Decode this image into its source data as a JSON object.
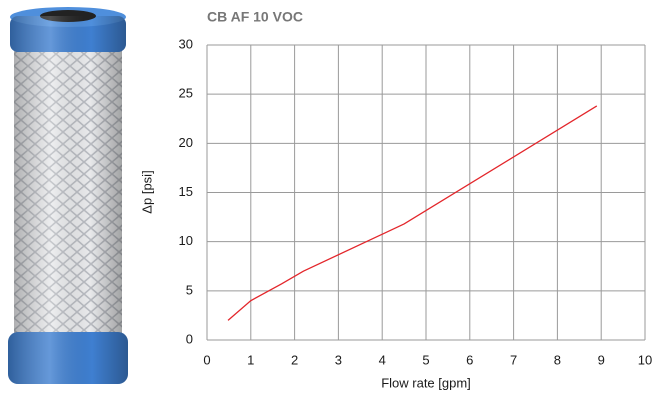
{
  "chart_data": {
    "type": "line",
    "title": "CB AF 10 VOC",
    "x_label": "Flow rate [gpm]",
    "y_label": "Δp [psi]",
    "x": [
      0.48,
      1.0,
      1.7,
      2.2,
      4.5,
      8.9
    ],
    "values": [
      2.0,
      4.0,
      5.7,
      7.0,
      11.8,
      23.8
    ],
    "color": "#e3262b",
    "xlim": [
      0,
      10
    ],
    "xticks": [
      0,
      1,
      2,
      3,
      4,
      5,
      6,
      7,
      8,
      9,
      10
    ],
    "ylim": [
      0,
      30
    ],
    "yticks": [
      0,
      5,
      10,
      15,
      20,
      25,
      30
    ],
    "grid": true
  }
}
